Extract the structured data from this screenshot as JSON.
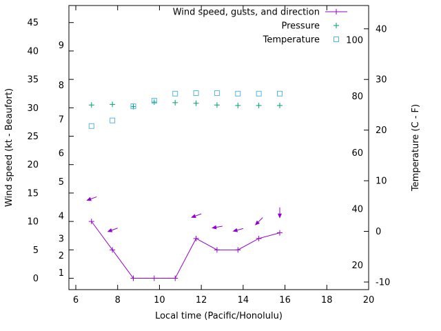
{
  "chart_data": {
    "type": "line",
    "title": "",
    "xlabel": "Local time (Pacific/Honolulu)",
    "ylabel_left": "Wind speed (kt - Beaufort)",
    "ylabel_right": "Temperature (C - F)",
    "grid": false,
    "legend_position": "top-right-inside",
    "xlim": [
      5.67,
      20
    ],
    "ylim_left": [
      -2,
      48
    ],
    "ylim_right": [
      -11.5,
      44.6
    ],
    "x_ticks": [
      6,
      8,
      10,
      12,
      14,
      16,
      18,
      20
    ],
    "left_axis_kt_ticks": [
      0,
      5,
      10,
      15,
      20,
      25,
      30,
      35,
      40,
      45
    ],
    "left_axis_beaufort_labels": [
      {
        "label": "1",
        "kt": 1
      },
      {
        "label": "2",
        "kt": 4
      },
      {
        "label": "3",
        "kt": 7
      },
      {
        "label": "4",
        "kt": 11
      },
      {
        "label": "5",
        "kt": 17
      },
      {
        "label": "6",
        "kt": 22
      },
      {
        "label": "7",
        "kt": 28
      },
      {
        "label": "8",
        "kt": 34
      },
      {
        "label": "9",
        "kt": 41
      }
    ],
    "right_axis_c_ticks": [
      -10,
      0,
      10,
      20,
      30,
      40
    ],
    "right_axis_f_labels": [
      20,
      40,
      60,
      80,
      100
    ],
    "colors": {
      "wind": "#9400d3",
      "pressure": "#009e73",
      "temperature": "#56b4e9",
      "axis": "#000000",
      "background": "#ffffff"
    },
    "x": [
      6.75,
      7.75,
      8.75,
      9.75,
      10.75,
      11.75,
      12.75,
      13.75,
      14.75,
      15.75
    ],
    "series": [
      {
        "name": "Wind speed, gusts, and direction",
        "style": "linespoints",
        "marker": "plus",
        "axis": "left",
        "color_key": "wind",
        "values": [
          10,
          5,
          0,
          0,
          0,
          7,
          5,
          5,
          7,
          8
        ]
      },
      {
        "name": "Pressure",
        "style": "points",
        "marker": "plus",
        "axis": "left",
        "color_key": "pressure",
        "values": [
          30.5,
          30.6,
          30.2,
          31.0,
          30.9,
          30.8,
          30.5,
          30.4,
          30.4,
          30.4
        ]
      },
      {
        "name": "Temperature",
        "style": "points",
        "marker": "open-square",
        "axis": "right",
        "color_key": "temperature",
        "values": [
          20.8,
          21.9,
          24.7,
          25.8,
          27.2,
          27.3,
          27.3,
          27.2,
          27.2,
          27.2
        ]
      }
    ],
    "wind_arrows": [
      {
        "x": 6.75,
        "gust_kt": 14,
        "dir_deg": 250
      },
      {
        "x": 7.75,
        "gust_kt": 8.5,
        "dir_deg": 250
      },
      {
        "x": 11.75,
        "gust_kt": 11,
        "dir_deg": 250
      },
      {
        "x": 12.75,
        "gust_kt": 9,
        "dir_deg": 260
      },
      {
        "x": 13.75,
        "gust_kt": 8.5,
        "dir_deg": 255
      },
      {
        "x": 14.75,
        "gust_kt": 10,
        "dir_deg": 225
      },
      {
        "x": 15.75,
        "gust_kt": 11.5,
        "dir_deg": 180
      }
    ]
  }
}
